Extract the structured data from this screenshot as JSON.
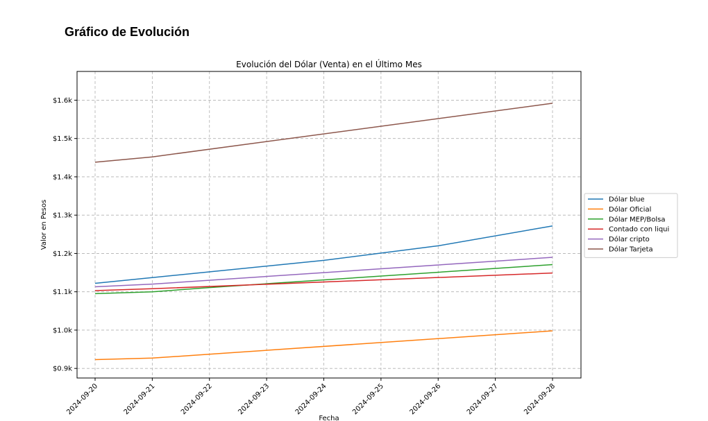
{
  "page": {
    "title": "Gráfico de Evolución"
  },
  "chart_data": {
    "type": "line",
    "title": "Evolución del Dólar (Venta) en el Último Mes",
    "xlabel": "Fecha",
    "ylabel": "Valor en Pesos",
    "x": [
      "2024-09-20",
      "2024-09-21",
      "2024-09-22",
      "2024-09-23",
      "2024-09-24",
      "2024-09-25",
      "2024-09-26",
      "2024-09-27",
      "2024-09-28"
    ],
    "ylim": [
      875,
      1675
    ],
    "yticks": [
      900,
      1000,
      1100,
      1200,
      1300,
      1400,
      1500,
      1600
    ],
    "ytick_labels": [
      "$0.9k",
      "$1.0k",
      "$1.1k",
      "$1.2k",
      "$1.3k",
      "$1.4k",
      "$1.5k",
      "$1.6k"
    ],
    "grid": true,
    "legend_position": "center-right-outside",
    "series": [
      {
        "name": "Dólar blue",
        "color": "#1f77b4",
        "points": [
          [
            "2024-09-20",
            1122
          ],
          [
            "2024-09-24",
            1182
          ],
          [
            "2024-09-26",
            1220
          ],
          [
            "2024-09-28",
            1272
          ]
        ]
      },
      {
        "name": "Dólar Oficial",
        "color": "#ff7f0e",
        "points": [
          [
            "2024-09-20",
            923
          ],
          [
            "2024-09-21",
            927
          ],
          [
            "2024-09-28",
            998
          ]
        ]
      },
      {
        "name": "Dólar MEP/Bolsa",
        "color": "#2ca02c",
        "points": [
          [
            "2024-09-20",
            1095
          ],
          [
            "2024-09-21",
            1100
          ],
          [
            "2024-09-22",
            1111
          ],
          [
            "2024-09-28",
            1171
          ]
        ]
      },
      {
        "name": "Contado con liqui",
        "color": "#d62728",
        "points": [
          [
            "2024-09-20",
            1103
          ],
          [
            "2024-09-21",
            1108
          ],
          [
            "2024-09-28",
            1149
          ]
        ]
      },
      {
        "name": "Dólar cripto",
        "color": "#9467bd",
        "points": [
          [
            "2024-09-20",
            1113
          ],
          [
            "2024-09-21",
            1120
          ],
          [
            "2024-09-28",
            1190
          ]
        ]
      },
      {
        "name": "Dólar Tarjeta",
        "color": "#8c564b",
        "points": [
          [
            "2024-09-20",
            1438
          ],
          [
            "2024-09-21",
            1452
          ],
          [
            "2024-09-28",
            1592
          ]
        ]
      }
    ]
  }
}
